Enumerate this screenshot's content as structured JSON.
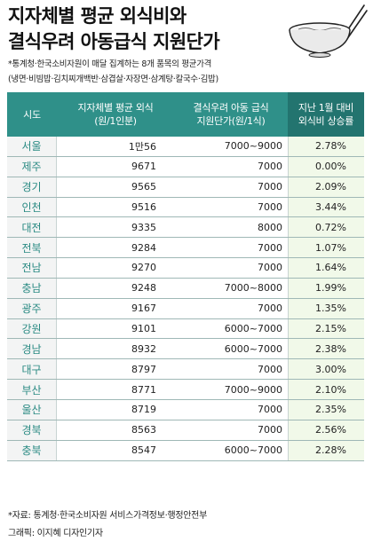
{
  "title": {
    "line1": "지자체별 평균 외식비와",
    "line2": "결식우려 아동급식 지원단가"
  },
  "subtitle": {
    "line1": "*통계청·한국소비자원이 매달 집계하는 8개 품목의 평균가격",
    "line2": "(냉면·비빔밥·김치찌개백반·삼겹살·자장면·삼계탕·칼국수·김밥)"
  },
  "table": {
    "headers": {
      "city": "시도",
      "avg_line1": "지자체별 평균 외식",
      "avg_line2": "(원/1인분)",
      "sup_line1": "결식우려 아동 급식",
      "sup_line2": "지원단가(원/1식)",
      "rate_line1": "지난 1월 대비",
      "rate_line2": "외식비 상승률"
    },
    "rows": [
      {
        "city": "서울",
        "avg": "1만56",
        "support": "7000~9000",
        "rate": "2.78%"
      },
      {
        "city": "제주",
        "avg": "9671",
        "support": "7000",
        "rate": "0.00%"
      },
      {
        "city": "경기",
        "avg": "9565",
        "support": "7000",
        "rate": "2.09%"
      },
      {
        "city": "인천",
        "avg": "9516",
        "support": "7000",
        "rate": "3.44%"
      },
      {
        "city": "대전",
        "avg": "9335",
        "support": "8000",
        "rate": "0.72%"
      },
      {
        "city": "전북",
        "avg": "9284",
        "support": "7000",
        "rate": "1.07%"
      },
      {
        "city": "전남",
        "avg": "9270",
        "support": "7000",
        "rate": "1.64%"
      },
      {
        "city": "충남",
        "avg": "9248",
        "support": "7000~8000",
        "rate": "1.99%"
      },
      {
        "city": "광주",
        "avg": "9167",
        "support": "7000",
        "rate": "1.35%"
      },
      {
        "city": "강원",
        "avg": "9101",
        "support": "6000~7000",
        "rate": "2.15%"
      },
      {
        "city": "경남",
        "avg": "8932",
        "support": "6000~7000",
        "rate": "2.38%"
      },
      {
        "city": "대구",
        "avg": "8797",
        "support": "7000",
        "rate": "3.00%"
      },
      {
        "city": "부산",
        "avg": "8771",
        "support": "7000~9000",
        "rate": "2.10%"
      },
      {
        "city": "울산",
        "avg": "8719",
        "support": "7000",
        "rate": "2.35%"
      },
      {
        "city": "경북",
        "avg": "8563",
        "support": "7000",
        "rate": "2.56%"
      },
      {
        "city": "충북",
        "avg": "8547",
        "support": "6000~7000",
        "rate": "2.28%"
      }
    ]
  },
  "footer": {
    "source": "*자료: 통계청·한국소비자원 서비스가격정보·행정안전부",
    "graphic": "그래픽: 이지혜 디자인기자"
  },
  "colors": {
    "header": "#2f9089",
    "header_highlight": "#23746f",
    "city_text": "#2a8a83",
    "rate_column_bg": "#f1f9e9"
  },
  "icons": [
    "noodle-bowl-icon"
  ]
}
